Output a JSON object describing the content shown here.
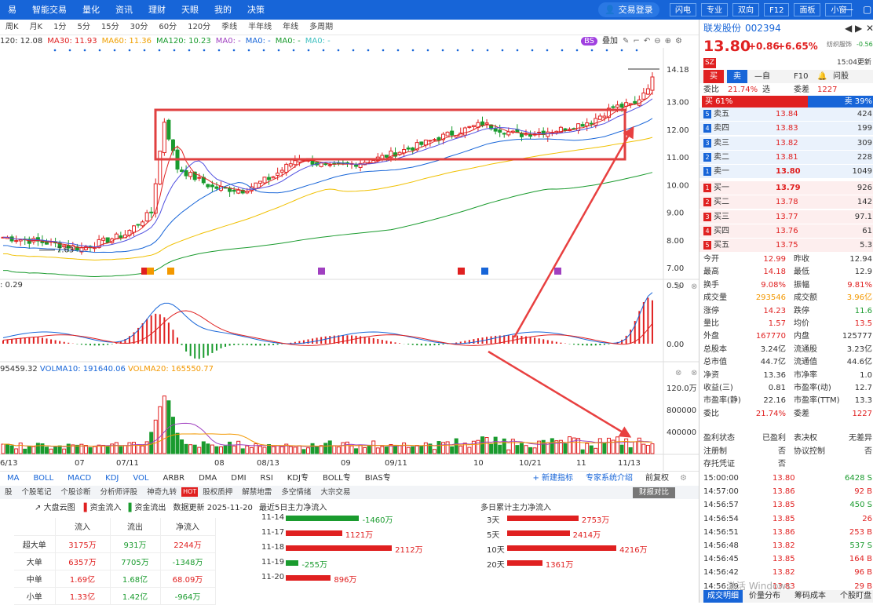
{
  "topbar": {
    "menu": [
      "易",
      "智能交易",
      "量化",
      "资讯",
      "理财",
      "天眼",
      "我的",
      "决策"
    ],
    "login": "交易登录",
    "buttons": [
      "闪电",
      "专业",
      "双向",
      "F12",
      "面板",
      "小窗"
    ]
  },
  "periods": [
    "周K",
    "月K",
    "1分",
    "5分",
    "15分",
    "30分",
    "60分",
    "120分",
    "季线",
    "半年线",
    "年线",
    "多周期"
  ],
  "ma": [
    {
      "text": "120: 12.08",
      "color": "#333"
    },
    {
      "text": "MA30: 11.93",
      "color": "#e02020"
    },
    {
      "text": "MA60: 11.36",
      "color": "#f0a000"
    },
    {
      "text": "MA120: 10.23",
      "color": "#1a9b2e"
    },
    {
      "text": "MA0: -",
      "color": "#a040c0"
    },
    {
      "text": "MA0: -",
      "color": "#1765d8"
    },
    {
      "text": "MA0: -",
      "color": "#1a9b2e"
    },
    {
      "text": "MA0: -",
      "color": "#40c0c0"
    }
  ],
  "chart_tools": [
    "BS",
    "叠加"
  ],
  "price_axis": [
    "14.18",
    "13.00",
    "12.00",
    "11.00",
    "10.00",
    "9.00",
    "8.00",
    "7.00"
  ],
  "macd_axis": [
    "0.50",
    "0.00"
  ],
  "vol_axis": [
    "120.0万",
    "800000",
    "400000"
  ],
  "labels": {
    "low": "7.63",
    "macd": ": 0.29",
    "vol": "95459.32",
    "vol10": "VOLMA10: 191640.06",
    "vol20": "VOLMA20: 165550.77"
  },
  "date_axis": [
    "6/13",
    "07",
    "07/11",
    "08",
    "08/13",
    "09",
    "09/11",
    "10",
    "10/21",
    "11",
    "11/13"
  ],
  "indicator_tabs": [
    "MA",
    "BOLL",
    "MACD",
    "KDJ",
    "VOL",
    "ARBR",
    "DMA",
    "DMI",
    "RSI",
    "KDJ专",
    "BOLL专",
    "BIAS专"
  ],
  "indicator_right": [
    "+ 新建指标",
    "专家系统介绍",
    "前复权"
  ],
  "subtabs": [
    "股",
    "个股笔记",
    "个股诊断",
    "分析师评股",
    "神奇九转",
    "股权质押",
    "解禁地雷",
    "多空情绪",
    "大宗交易"
  ],
  "hot": "HOT",
  "report_btn": "财报对比",
  "fund": {
    "title": "大盘云图",
    "in_legend": "资金流入",
    "out_legend": "资金流出",
    "update": "数据更新 2025-11-20",
    "cols": [
      "",
      "流入",
      "流出",
      "净流入"
    ],
    "rows": [
      [
        "超大单",
        "3175万",
        "931万",
        "2244万"
      ],
      [
        "大单",
        "6357万",
        "7705万",
        "-1348万"
      ],
      [
        "中单",
        "1.69亿",
        "1.68亿",
        "68.09万"
      ],
      [
        "小单",
        "1.33亿",
        "1.42亿",
        "-964万"
      ]
    ],
    "recent_title": "最近5日主力净流入",
    "recent": [
      {
        "d": "11-14",
        "v": -1460,
        "t": "-1460万"
      },
      {
        "d": "11-17",
        "v": 1121,
        "t": "1121万"
      },
      {
        "d": "11-18",
        "v": 2112,
        "t": "2112万"
      },
      {
        "d": "11-19",
        "v": -255,
        "t": "-255万"
      },
      {
        "d": "11-20",
        "v": 896,
        "t": "896万"
      }
    ],
    "multi_title": "多日累计主力净流入",
    "multi": [
      {
        "d": "3天",
        "v": 2753,
        "t": "2753万"
      },
      {
        "d": "5天",
        "v": 2414,
        "t": "2414万"
      },
      {
        "d": "10天",
        "v": 4216,
        "t": "4216万"
      },
      {
        "d": "20天",
        "v": 1361,
        "t": "1361万"
      }
    ]
  },
  "right": {
    "name": "联发股份",
    "code": "002394",
    "price": "13.80",
    "chg": "+0.86",
    "pct": "+6.65%",
    "tag1": "纺织服饰",
    "tag2": "-0.56",
    "time": "15:04更新",
    "sz": "SZ",
    "buy_btn": "买",
    "sell_btn": "卖",
    "tabs": [
      "自选",
      "F10",
      "问股"
    ],
    "weibi_l": "委比",
    "weibi_v": "21.74%",
    "weicha_l": "委差",
    "weicha_v": "1227",
    "buy_pct": "买 61%",
    "sell_pct": "卖 39%",
    "asks": [
      [
        "5",
        "卖五",
        "13.84",
        "424"
      ],
      [
        "4",
        "卖四",
        "13.83",
        "199"
      ],
      [
        "3",
        "卖三",
        "13.82",
        "309"
      ],
      [
        "2",
        "卖二",
        "13.81",
        "228"
      ],
      [
        "1",
        "卖一",
        "13.80",
        "1049"
      ]
    ],
    "bids": [
      [
        "1",
        "买一",
        "13.79",
        "926"
      ],
      [
        "2",
        "买二",
        "13.78",
        "142"
      ],
      [
        "3",
        "买三",
        "13.77",
        "97.1"
      ],
      [
        "4",
        "买四",
        "13.76",
        "61"
      ],
      [
        "5",
        "买五",
        "13.75",
        "5.3"
      ]
    ],
    "stats": [
      [
        "今开",
        "12.99",
        "昨收",
        "12.94"
      ],
      [
        "最高",
        "14.18",
        "最低",
        "12.9"
      ],
      [
        "换手",
        "9.08%",
        "振幅",
        "9.81%"
      ],
      [
        "成交量",
        "293546",
        "成交额",
        "3.96亿"
      ],
      [
        "涨停",
        "14.23",
        "跌停",
        "11.6"
      ],
      [
        "量比",
        "1.57",
        "均价",
        "13.5"
      ],
      [
        "外盘",
        "167770",
        "内盘",
        "125777"
      ],
      [
        "总股本",
        "3.24亿",
        "流通股",
        "3.23亿"
      ],
      [
        "总市值",
        "44.7亿",
        "流通值",
        "44.6亿"
      ],
      [
        "净资",
        "13.36",
        "市净率",
        "1.0"
      ],
      [
        "收益(三)",
        "0.81",
        "市盈率(动)",
        "12.7"
      ],
      [
        "市盈率(静)",
        "22.16",
        "市盈率(TTM)",
        "13.3"
      ],
      [
        "委比",
        "21.74%",
        "委差",
        "1227"
      ]
    ],
    "status": [
      [
        "盈利状态",
        "已盈利",
        "表决权",
        "无差异"
      ],
      [
        "注册制",
        "否",
        "协议控制",
        "否"
      ],
      [
        "存托凭证",
        "否",
        "",
        ""
      ]
    ],
    "ticks": [
      [
        "15:00:00",
        "13.80",
        "6428 S"
      ],
      [
        "14:57:00",
        "13.86",
        "92 B"
      ],
      [
        "14:56:57",
        "13.85",
        "450 S"
      ],
      [
        "14:56:54",
        "13.85",
        "26"
      ],
      [
        "14:56:51",
        "13.86",
        "253 B"
      ],
      [
        "14:56:48",
        "13.82",
        "537 S"
      ],
      [
        "14:56:45",
        "13.85",
        "164 B"
      ],
      [
        "14:56:42",
        "13.82",
        "96 B"
      ],
      [
        "14:56:39",
        "13.83",
        "29 B"
      ]
    ],
    "bottom_tabs": [
      "成交明细",
      "价量分布",
      "筹码成本",
      "个股盯盘"
    ],
    "watermark": "激活 Windows"
  }
}
